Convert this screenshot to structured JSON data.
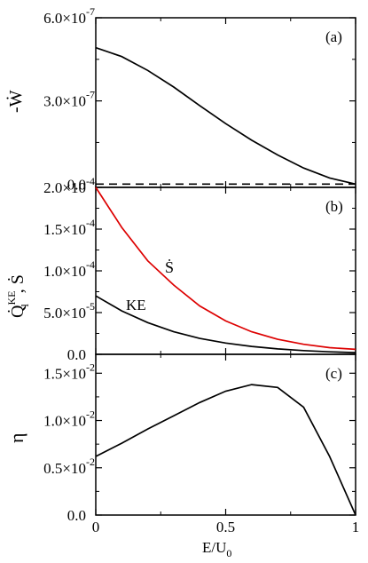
{
  "chart_data": [
    {
      "type": "line",
      "panel_label": "(a)",
      "ylabel": "-Ẇ",
      "xlim": [
        0,
        1
      ],
      "ylim": [
        -1.2e-08,
        6e-07
      ],
      "yticks": [
        {
          "value": 0.0,
          "label": "0.0"
        },
        {
          "value": 3e-07,
          "label": "3.0×10",
          "exp": "-7"
        },
        {
          "value": 6e-07,
          "label": "6.0×10",
          "exp": "-7"
        }
      ],
      "series": [
        {
          "color": "#000000",
          "dash": false,
          "x": [
            0,
            0.1,
            0.2,
            0.3,
            0.4,
            0.5,
            0.6,
            0.7,
            0.8,
            0.9,
            1.0
          ],
          "y": [
            4.92e-07,
            4.6e-07,
            4.1e-07,
            3.5e-07,
            2.83e-07,
            2.18e-07,
            1.58e-07,
            1.05e-07,
            5.8e-08,
            2.2e-08,
            0.0
          ]
        },
        {
          "color": "#000000",
          "dash": true,
          "x": [
            0,
            1.0
          ],
          "y": [
            0,
            0
          ]
        }
      ]
    },
    {
      "type": "line",
      "panel_label": "(b)",
      "ylabel": "Q̇",
      "ylabel_sup": "KE",
      "ylabel_sub": "l",
      "ylabel_rest": ", Ṡ",
      "xlim": [
        0,
        1
      ],
      "ylim": [
        0,
        0.0002
      ],
      "yticks": [
        {
          "value": 0.0,
          "label": "0.0"
        },
        {
          "value": 5e-05,
          "label": "5.0×10",
          "exp": "-5"
        },
        {
          "value": 0.0001,
          "label": "1.0×10",
          "exp": "-4"
        },
        {
          "value": 0.00015,
          "label": "1.5×10",
          "exp": "-4"
        },
        {
          "value": 0.0002,
          "label": "2.0×10",
          "exp": "-4"
        }
      ],
      "series": [
        {
          "name": "Ṡ",
          "color": "#dd0000",
          "x": [
            0,
            0.1,
            0.2,
            0.3,
            0.4,
            0.5,
            0.6,
            0.7,
            0.8,
            0.9,
            1.0
          ],
          "y": [
            0.0002,
            0.000152,
            0.000112,
            8.3e-05,
            5.8e-05,
            4e-05,
            2.7e-05,
            1.8e-05,
            1.2e-05,
            8e-06,
            6e-06
          ]
        },
        {
          "name": "KE",
          "color": "#000000",
          "x": [
            0,
            0.1,
            0.2,
            0.3,
            0.4,
            0.5,
            0.6,
            0.7,
            0.8,
            0.9,
            1.0
          ],
          "y": [
            7e-05,
            5.2e-05,
            3.8e-05,
            2.7e-05,
            1.9e-05,
            1.35e-05,
            9.5e-06,
            6.5e-06,
            4.5e-06,
            3e-06,
            2e-06
          ]
        }
      ]
    },
    {
      "type": "line",
      "panel_label": "(c)",
      "ylabel": "η",
      "xlabel": "E/U",
      "xlabel_sub": "0",
      "xlim": [
        0,
        1
      ],
      "ylim": [
        0,
        0.017
      ],
      "xticks": [
        {
          "value": 0,
          "label": "0"
        },
        {
          "value": 0.5,
          "label": "0.5"
        },
        {
          "value": 1,
          "label": "1"
        }
      ],
      "yticks": [
        {
          "value": 0.0,
          "label": "0.0"
        },
        {
          "value": 0.005,
          "label": "0.5×10",
          "exp": "-2"
        },
        {
          "value": 0.01,
          "label": "1.0×10",
          "exp": "-2"
        },
        {
          "value": 0.015,
          "label": "1.5×10",
          "exp": "-2"
        }
      ],
      "series": [
        {
          "color": "#000000",
          "x": [
            0,
            0.1,
            0.2,
            0.3,
            0.4,
            0.5,
            0.6,
            0.7,
            0.8,
            0.9,
            1.0
          ],
          "y": [
            0.0062,
            0.0076,
            0.0091,
            0.0105,
            0.0119,
            0.0131,
            0.0138,
            0.0135,
            0.0114,
            0.0062,
            0.0
          ]
        }
      ]
    }
  ]
}
